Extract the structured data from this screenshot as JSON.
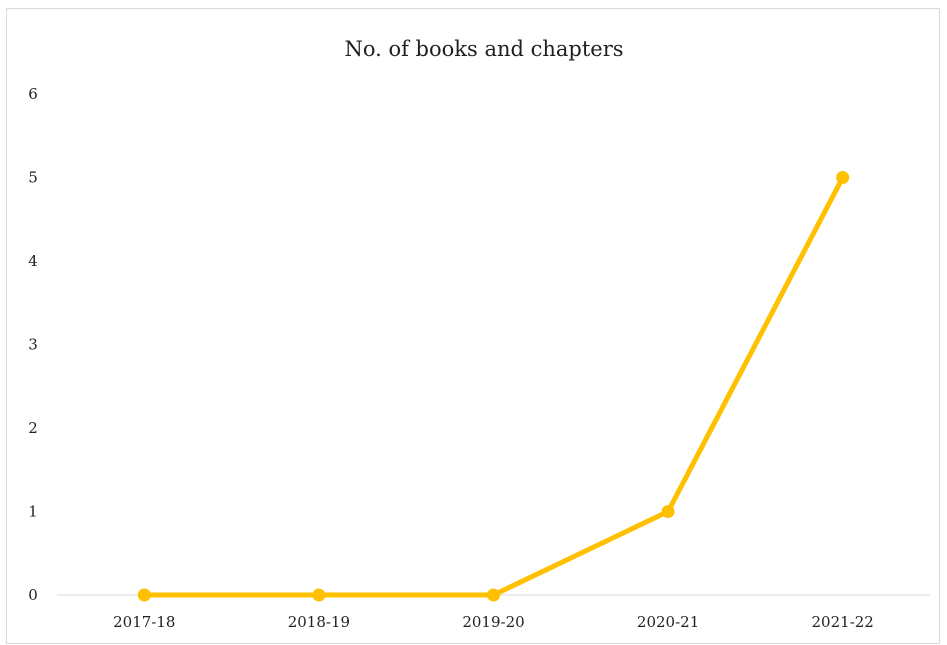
{
  "chart_data": {
    "type": "line",
    "title": "No. of books and chapters",
    "xlabel": "",
    "ylabel": "",
    "categories": [
      "2017-18",
      "2018-19",
      "2019-20",
      "2020-21",
      "2021-22"
    ],
    "series": [
      {
        "values": [
          0,
          0,
          0,
          1,
          5
        ],
        "color": "#FFC000"
      }
    ],
    "ylim": [
      0,
      6
    ],
    "yticks": [
      "0",
      "1",
      "2",
      "3",
      "4",
      "5",
      "6"
    ],
    "grid": false,
    "legend": "none",
    "markers": true
  }
}
